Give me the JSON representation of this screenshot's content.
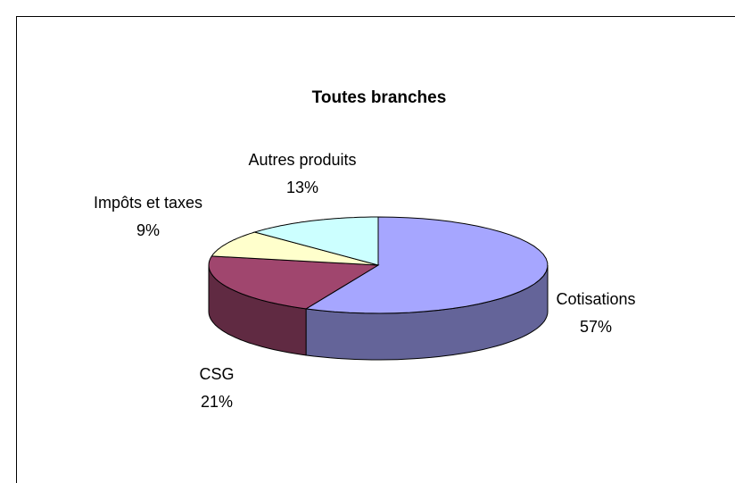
{
  "chart_data": {
    "type": "pie",
    "title": "Toutes branches",
    "categories": [
      "Cotisations",
      "CSG",
      "Impôts et taxes",
      "Autres produits"
    ],
    "values": [
      57,
      21,
      9,
      13
    ],
    "value_labels": [
      "57%",
      "21%",
      "9%",
      "13%"
    ],
    "colors": [
      "#a6a6ff",
      "#a0466e",
      "#ffffcc",
      "#ccffff"
    ]
  }
}
